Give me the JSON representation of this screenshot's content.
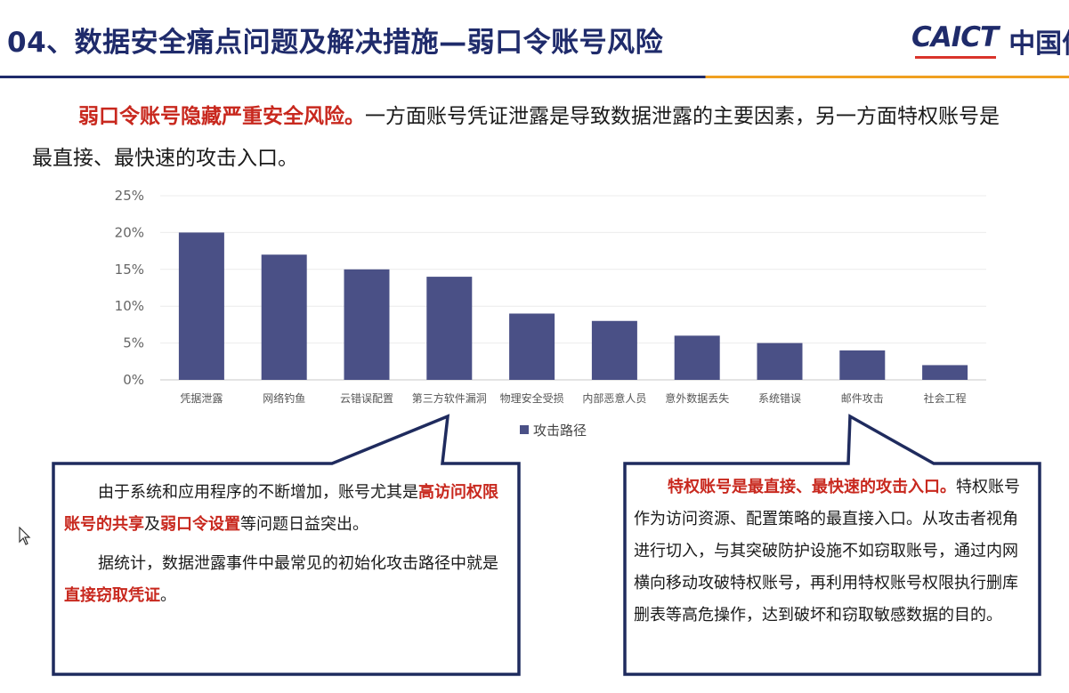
{
  "header": {
    "title": "04、数据安全痛点问题及解决措施—弱口令账号风险",
    "logo_word": "CAICT",
    "logo_cn": "中国信"
  },
  "intro": {
    "highlight": "弱口令账号隐藏严重安全风险。",
    "line1_rest": "一方面账号凭证泄露是导致数据泄露的主要因素，另一方面特权账号是",
    "line2": "最直接、最快速的攻击入口。"
  },
  "chart_data": {
    "type": "bar",
    "categories": [
      "凭据泄露",
      "网络钓鱼",
      "云错误配置",
      "第三方软件漏洞",
      "物理安全受损",
      "内部恶意人员",
      "意外数据丢失",
      "系统错误",
      "邮件攻击",
      "社会工程"
    ],
    "series": [
      {
        "name": "攻击路径",
        "values": [
          20,
          17,
          15,
          14,
          9,
          8,
          6,
          5,
          4,
          2
        ],
        "color": "#4a5086"
      }
    ],
    "ylim": [
      0,
      25
    ],
    "yticks": [
      "0%",
      "5%",
      "10%",
      "15%",
      "20%",
      "25%"
    ],
    "grid": true,
    "legend_position": "bottom"
  },
  "callout_left": {
    "p1_a": "由于系统和应用程序的不断增加，账号尤其是",
    "p1_red1": "高访问权限账号的共享",
    "p1_b": "及",
    "p1_red2": "弱口令设置",
    "p1_c": "等问题日益突出。",
    "p2_a": "据统计，数据泄露事件中最常见的初始化攻击路径中就是",
    "p2_red": "直接窃取凭证",
    "p2_b": "。"
  },
  "callout_right": {
    "red": "特权账号是最直接、最快速的攻击入口。",
    "text": "特权账号作为访问资源、配置策略的最直接入口。从攻击者视角进行切入，与其突破防护设施不如窃取账号，通过内网横向移动攻破特权账号，再利用特权账号权限执行删库删表等高危操作，达到破坏和窃取敏感数据的目的。"
  },
  "icons": {
    "cursor": "mouse-pointer-icon"
  }
}
